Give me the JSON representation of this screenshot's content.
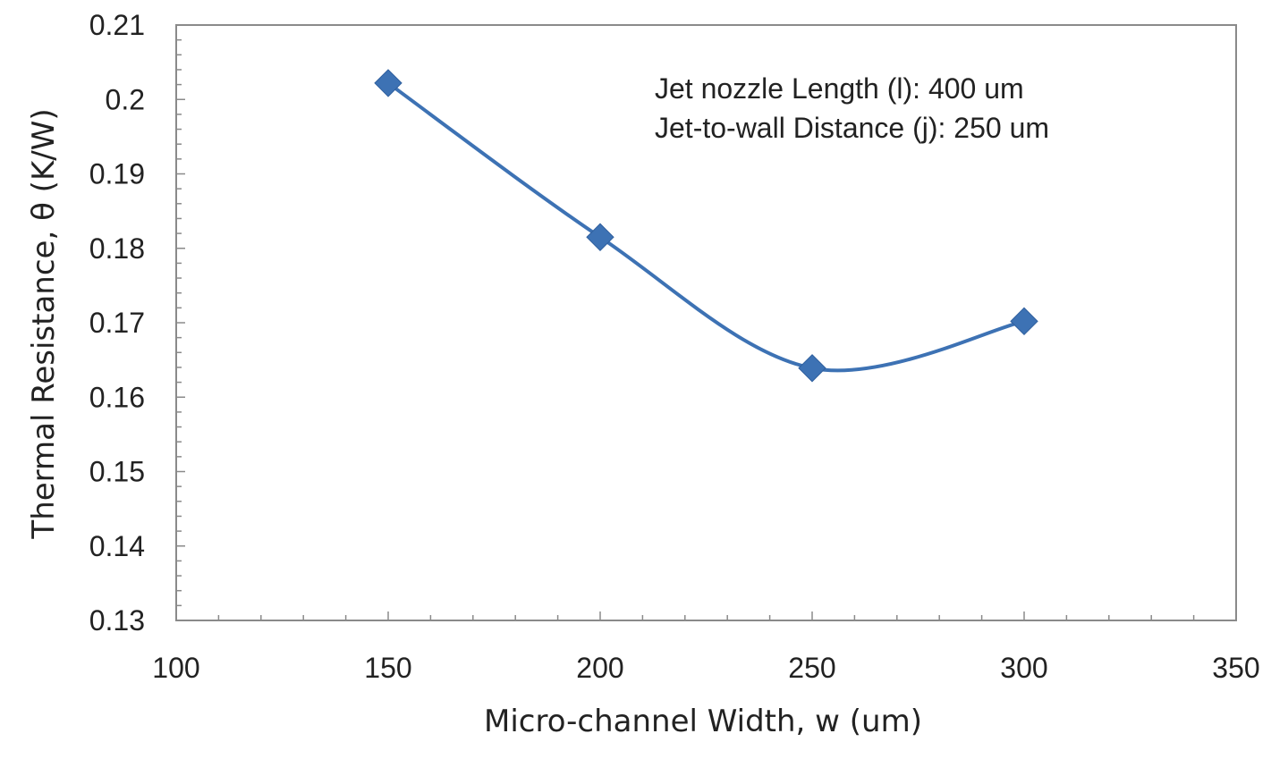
{
  "chart_data": {
    "type": "line",
    "title": "",
    "xlabel": "Micro-channel Width, w (um)",
    "ylabel": "Thermal Resistance, θ (K/W)",
    "xlim": [
      100,
      350
    ],
    "ylim": [
      0.13,
      0.21
    ],
    "x_ticks": [
      100,
      150,
      200,
      250,
      300,
      350
    ],
    "y_ticks": [
      0.13,
      0.14,
      0.15,
      0.16,
      0.17,
      0.18,
      0.19,
      0.2,
      0.21
    ],
    "x_tick_labels": [
      "100",
      "150",
      "200",
      "250",
      "300",
      "350"
    ],
    "y_tick_labels": [
      "0.13",
      "0.14",
      "0.15",
      "0.16",
      "0.17",
      "0.18",
      "0.19",
      "0.2",
      "0.21"
    ],
    "grid": false,
    "legend": "none",
    "smooth": true,
    "marker": "diamond",
    "series": [
      {
        "x": [
          150,
          200,
          250,
          300
        ],
        "values": [
          0.2022,
          0.1815,
          0.1639,
          0.1702
        ],
        "color": "#3d72b4"
      }
    ],
    "annotations": [
      "Jet nozzle Length (l): 400 um",
      "Jet-to-wall Distance (j): 250 um"
    ]
  }
}
